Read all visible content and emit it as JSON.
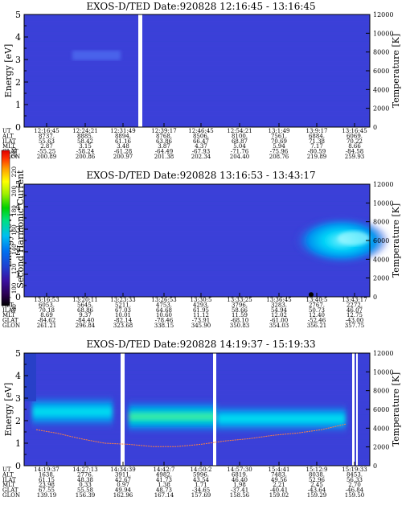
{
  "chart_data": [
    {
      "type": "heatmap",
      "title": "EXOS-D/TED   Date:920828   12:16:45 - 13:16:45",
      "ylabel": "Energy [eV]",
      "y2label": "Temperature [K]",
      "ylim": [
        0,
        5
      ],
      "y2lim": [
        0,
        12000
      ],
      "yticks": [
        "0",
        "1",
        "2",
        "3",
        "4",
        "5"
      ],
      "y2ticks": [
        "0",
        "2000",
        "4000",
        "6000",
        "8000",
        "10000",
        "12000"
      ],
      "table": {
        "labels": [
          "UT",
          "ALT",
          "ILAT",
          "MLT",
          "GLAT",
          "GLON"
        ],
        "columns": [
          [
            "12:16:45",
            "8737.",
            "55.63",
            "2.87",
            "-55.25",
            "200.89"
          ],
          [
            "12:24:21",
            "8885.",
            "58.42",
            "3.15",
            "-58.24",
            "200.86"
          ],
          [
            "12:31:49",
            "8894.",
            "61.16",
            "3.48",
            "-61.28",
            "200.97"
          ],
          [
            "12:39:17",
            "8768.",
            "63.86",
            "3.87",
            "-64.49",
            "201.38"
          ],
          [
            "12:46:45",
            "8506.",
            "66.47",
            "4.37",
            "-67.93",
            "202.34"
          ],
          [
            "12:54:21",
            "8100.",
            "68.87",
            "5.04",
            "-71.76",
            "204.40"
          ],
          [
            "13:1:49",
            "7561.",
            "70.69",
            "5.94",
            "-75.96",
            "208.76"
          ],
          [
            "13:9:17",
            "6884.",
            "71.38",
            "7.17",
            "-80.59",
            "219.89"
          ],
          [
            "13:16:45",
            "6069.",
            "70.22",
            "8.66",
            "-84.58",
            "259.93"
          ]
        ]
      }
    },
    {
      "type": "heatmap",
      "title": "EXOS-D/TED   Date:920828   13:16:53 - 13:43:17",
      "ylabel": "Energy [eV]",
      "y2label": "Temperature [K]",
      "ylim": [
        0,
        5
      ],
      "y2lim": [
        0,
        12000
      ],
      "yticks": [
        "0",
        "1",
        "2",
        "3",
        "4",
        "5"
      ],
      "y2ticks": [
        "0",
        "2000",
        "4000",
        "6000",
        "8000",
        "10000",
        "12000"
      ],
      "colorbar": {
        "label": "Second Harmonic Current",
        "ticks": [
          "80",
          "100",
          "120",
          "140",
          "160",
          "180",
          "200",
          "220",
          "240"
        ],
        "range": [
          80,
          240
        ]
      },
      "table": {
        "labels": [
          "UT",
          "ALT",
          "ILAT",
          "MLT",
          "GLAT",
          "GLON"
        ],
        "columns": [
          [
            "13:16:53",
            "6053.",
            "70.18",
            "8.69",
            "-84.62",
            "261.21"
          ],
          [
            "13:20:11",
            "5645.",
            "68.86",
            "9.37",
            "-84.40",
            "296.84"
          ],
          [
            "13:23:33",
            "5211.",
            "67.03",
            "10.01",
            "-82.14",
            "323.68"
          ],
          [
            "13:26:53",
            "4753.",
            "64.68",
            "10.60",
            "-78.46",
            "338.15"
          ],
          [
            "13:30:5",
            "4293.",
            "61.95",
            "11.12",
            "-73.91",
            "345.90"
          ],
          [
            "13:33:25",
            "3796.",
            "58.66",
            "11.59",
            "-68.10",
            "350.83"
          ],
          [
            "13:36:45",
            "3283.",
            "54.94",
            "12.02",
            "-61.00",
            "354.03"
          ],
          [
            "13:40:5",
            "2767.",
            "50.73",
            "12.40",
            "-52.46",
            "356.21"
          ],
          [
            "13:43:17",
            "2272.",
            "46.07",
            "12.75",
            "-43.00",
            "357.75"
          ]
        ]
      }
    },
    {
      "type": "heatmap",
      "title": "EXOS-D/TED   Date:920828   14:19:37 - 15:19:33",
      "ylabel": "Energy [eV]",
      "y2label": "Temperature [K]",
      "ylim": [
        0,
        5
      ],
      "y2lim": [
        0,
        12000
      ],
      "yticks": [
        "0",
        "1",
        "2",
        "3",
        "4",
        "5"
      ],
      "y2ticks": [
        "0",
        "2000",
        "4000",
        "6000",
        "8000",
        "10000",
        "12000"
      ],
      "table": {
        "labels": [
          "UT",
          "ALT",
          "ILAT",
          "MLT",
          "GLAT",
          "GLON"
        ],
        "columns": [
          [
            "14:19:37",
            "1638.",
            "61.15",
            "23.98",
            "67.55",
            "139.19"
          ],
          [
            "14:27:13",
            "2776.",
            "48.38",
            "0.33",
            "55.58",
            "156.39"
          ],
          [
            "14:34:39",
            "3911.",
            "42.67",
            "0.97",
            "49.94",
            "162.96"
          ],
          [
            "14:42:7",
            "4982.",
            "41.73",
            "1.38",
            "48.73",
            "167.14"
          ],
          [
            "14:50:2",
            "5996.",
            "43.54",
            "1.71",
            "-34.65",
            "157.69"
          ],
          [
            "14:57:30",
            "6819.",
            "46.40",
            "1.98",
            "-37.41",
            "158.56"
          ],
          [
            "15:4:41",
            "7483.",
            "49.56",
            "2.21",
            "-40.41",
            "159.02"
          ],
          [
            "15:12:9",
            "8038.",
            "52.96",
            "2.45",
            "-43.64",
            "159.29"
          ],
          [
            "15:19:33",
            "8453.",
            "56.33",
            "2.70",
            "-46.84",
            "159.50"
          ]
        ]
      }
    }
  ]
}
